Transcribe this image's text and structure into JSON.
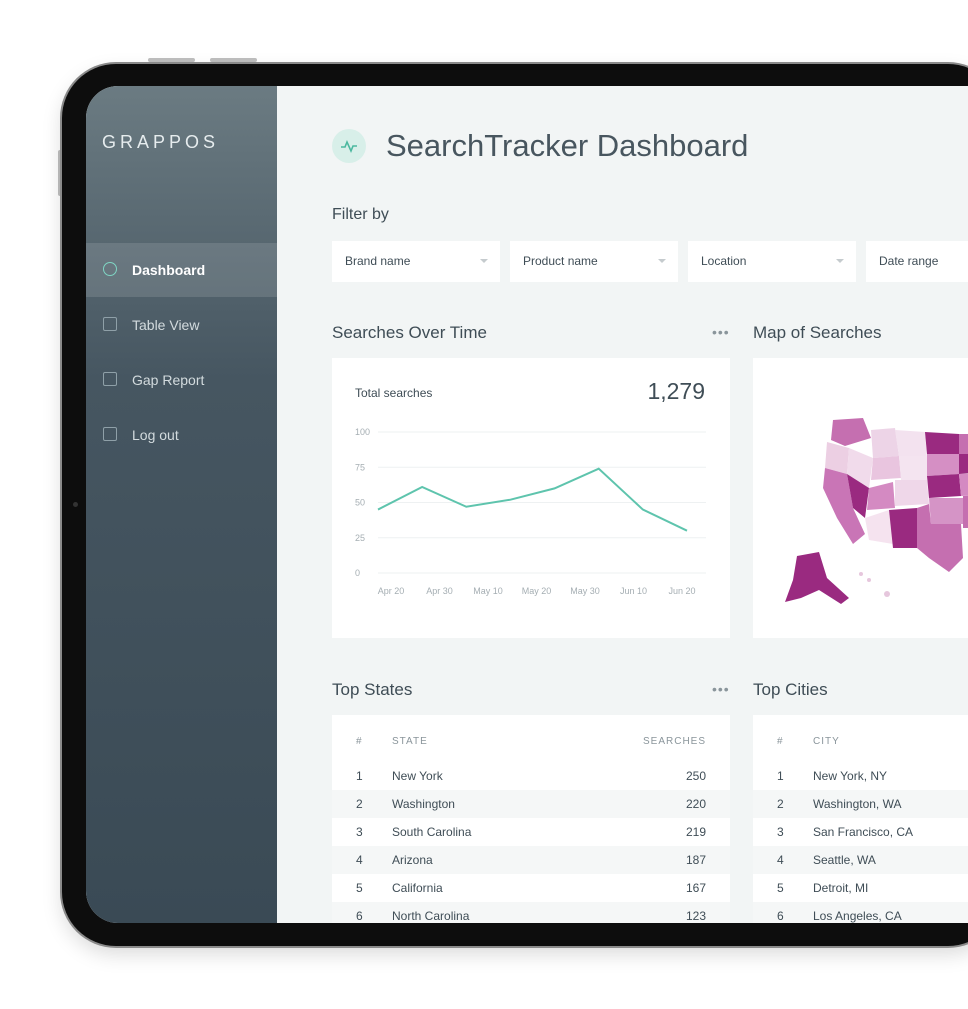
{
  "sidebar": {
    "brand": "GRAPPOS",
    "menu": [
      {
        "label": "Dashboard",
        "active": true
      },
      {
        "label": "Table View",
        "active": false
      },
      {
        "label": "Gap Report",
        "active": false
      },
      {
        "label": "Log out",
        "active": false
      }
    ]
  },
  "header": {
    "title": "SearchTracker Dashboard"
  },
  "filters": {
    "heading": "Filter by",
    "fields": [
      "Brand name",
      "Product name",
      "Location",
      "Date range"
    ]
  },
  "searches_over_time": {
    "title": "Searches Over Time",
    "total_label": "Total searches",
    "total": "1,279",
    "chart_data": {
      "type": "line",
      "color": "#5ec4ad",
      "ylim": [
        0,
        100
      ],
      "yticks": [
        0,
        25,
        50,
        75,
        100
      ],
      "grid": true,
      "x_labels": [
        "Apr 20",
        "Apr 30",
        "May 10",
        "May 20",
        "May 30",
        "Jun 10",
        "Jun 20"
      ],
      "values": [
        45,
        61,
        47,
        52,
        60,
        74,
        45,
        30
      ]
    }
  },
  "map": {
    "title": "Map of Searches"
  },
  "top_states": {
    "title": "Top States",
    "columns": [
      "#",
      "STATE",
      "SEARCHES"
    ],
    "rows": [
      [
        1,
        "New York",
        250
      ],
      [
        2,
        "Washington",
        220
      ],
      [
        3,
        "South Carolina",
        219
      ],
      [
        4,
        "Arizona",
        187
      ],
      [
        5,
        "California",
        167
      ],
      [
        6,
        "North Carolina",
        123
      ]
    ]
  },
  "top_cities": {
    "title": "Top Cities",
    "columns": [
      "#",
      "CITY"
    ],
    "rows": [
      [
        1,
        "New York, NY"
      ],
      [
        2,
        "Washington, WA"
      ],
      [
        3,
        "San Francisco, CA"
      ],
      [
        4,
        "Seattle, WA"
      ],
      [
        5,
        "Detroit, MI"
      ],
      [
        6,
        "Los Angeles, CA"
      ]
    ]
  }
}
